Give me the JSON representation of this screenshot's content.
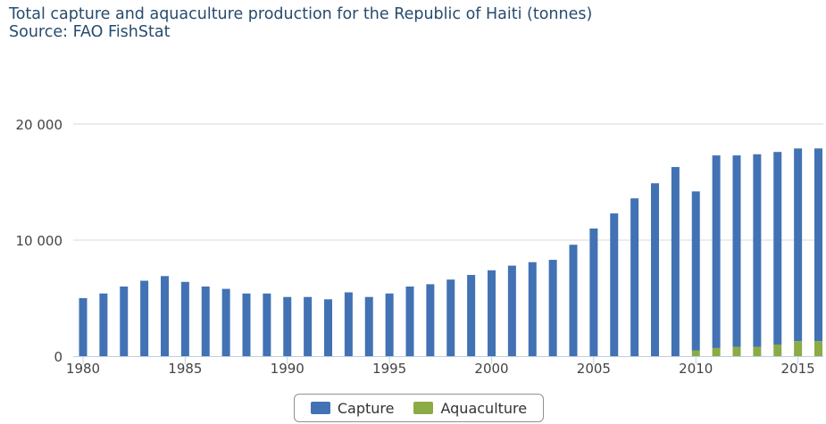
{
  "title": "Total capture and aquaculture production for the Republic of Haiti (tonnes)",
  "subtitle": "Source: FAO FishStat",
  "legend": {
    "capture": "Capture",
    "aquaculture": "Aquaculture"
  },
  "colors": {
    "capture": "#4272b4",
    "aquaculture": "#8bab47",
    "grid": "#d8d8d8",
    "axis": "#c0d0e0"
  },
  "chart_data": {
    "type": "bar",
    "stacked": true,
    "categories": [
      1980,
      1981,
      1982,
      1983,
      1984,
      1985,
      1986,
      1987,
      1988,
      1989,
      1990,
      1991,
      1992,
      1993,
      1994,
      1995,
      1996,
      1997,
      1998,
      1999,
      2000,
      2001,
      2002,
      2003,
      2004,
      2005,
      2006,
      2007,
      2008,
      2009,
      2010,
      2011,
      2012,
      2013,
      2014,
      2015,
      2016
    ],
    "x_ticks": [
      1980,
      1985,
      1990,
      1995,
      2000,
      2005,
      2010,
      2015
    ],
    "y_ticks": [
      {
        "value": 0,
        "label": "0"
      },
      {
        "value": 10000,
        "label": "10 000"
      },
      {
        "value": 20000,
        "label": "20 000"
      }
    ],
    "ylim": [
      0,
      20000
    ],
    "grid": true,
    "legend_position": "bottom",
    "series": [
      {
        "name": "Capture",
        "key": "capture",
        "values": [
          5000,
          5400,
          6000,
          6500,
          6900,
          6400,
          6000,
          5800,
          5400,
          5400,
          5100,
          5100,
          4900,
          5500,
          5100,
          5400,
          6000,
          6200,
          6600,
          7000,
          7400,
          7800,
          8100,
          8300,
          9600,
          11000,
          12300,
          13600,
          14900,
          16300,
          13700,
          16600,
          16500,
          16600,
          16600,
          16600,
          16600
        ]
      },
      {
        "name": "Aquaculture",
        "key": "aquaculture",
        "values": [
          0,
          0,
          0,
          0,
          0,
          0,
          0,
          0,
          0,
          0,
          0,
          0,
          0,
          0,
          0,
          0,
          0,
          0,
          0,
          0,
          0,
          0,
          0,
          0,
          0,
          0,
          0,
          0,
          0,
          0,
          500,
          700,
          800,
          800,
          1000,
          1300,
          1300
        ]
      }
    ]
  }
}
